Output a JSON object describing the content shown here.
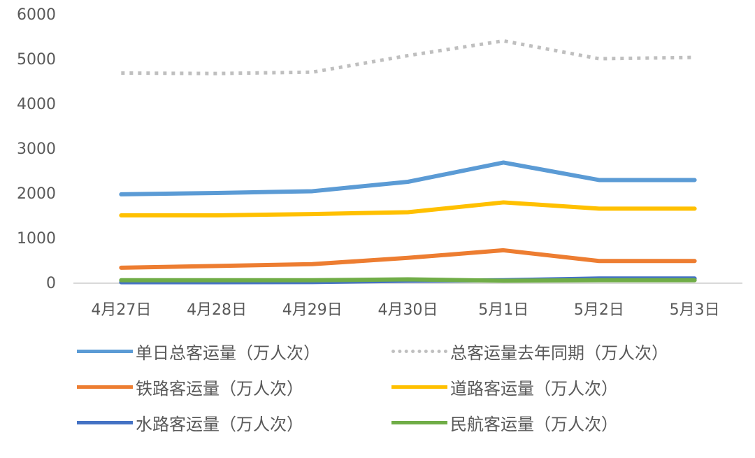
{
  "chart_data": {
    "type": "line",
    "categories": [
      "4月27日",
      "4月28日",
      "4月29日",
      "4月30日",
      "5月1日",
      "5月2日",
      "5月3日"
    ],
    "ylim": [
      0,
      6000
    ],
    "yticks": [
      0,
      1000,
      2000,
      3000,
      4000,
      5000,
      6000
    ],
    "grid": false,
    "legend_position": "bottom",
    "series": [
      {
        "name": "单日总客运量（万人次）",
        "color": "#5B9BD5",
        "style": "solid",
        "values": [
          1970,
          2000,
          2040,
          2250,
          2680,
          2290,
          2290
        ]
      },
      {
        "name": "总客运量去年同期（万人次）",
        "color": "#BFBFBF",
        "style": "dotted",
        "values": [
          4680,
          4670,
          4700,
          5070,
          5400,
          5000,
          5030
        ]
      },
      {
        "name": "铁路客运量（万人次）",
        "color": "#ED7D31",
        "style": "solid",
        "values": [
          330,
          370,
          410,
          550,
          720,
          480,
          480
        ]
      },
      {
        "name": "道路客运量（万人次）",
        "color": "#FFC000",
        "style": "solid",
        "values": [
          1500,
          1500,
          1530,
          1570,
          1790,
          1650,
          1650
        ]
      },
      {
        "name": "水路客运量（万人次）",
        "color": "#4472C4",
        "style": "solid",
        "values": [
          5,
          5,
          10,
          40,
          50,
          90,
          90
        ]
      },
      {
        "name": "民航客运量（万人次）",
        "color": "#70AD47",
        "style": "solid",
        "values": [
          50,
          50,
          50,
          70,
          40,
          50,
          50
        ]
      }
    ]
  }
}
